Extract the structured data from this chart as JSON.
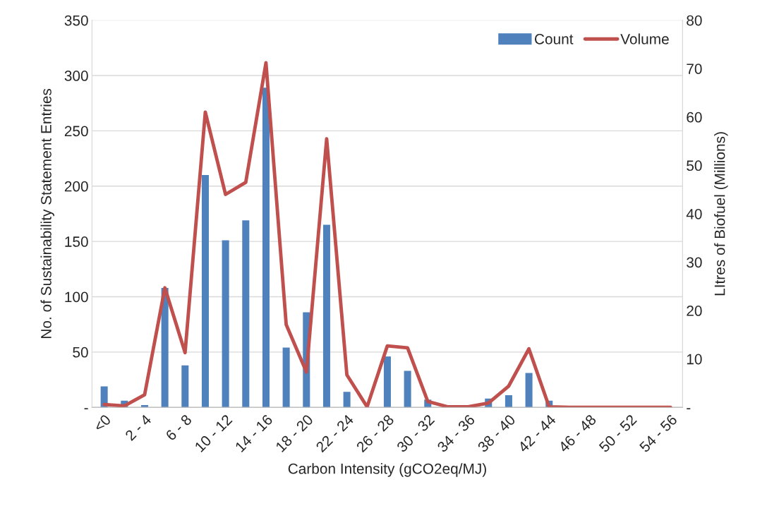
{
  "chart_data": {
    "type": "bar",
    "xlabel": "Carbon Intensity (gCO2eq/MJ)",
    "ylabel": "No. of Sustainability Statement Entries",
    "y2label": "LItres of Biofuel (Millions)",
    "categories": [
      "<0",
      null,
      "2 - 4",
      null,
      "6 - 8",
      null,
      "10 - 12",
      null,
      "14 - 16",
      null,
      "18 - 20",
      null,
      "22 - 24",
      null,
      "26 - 28",
      null,
      "30 - 32",
      null,
      "34 - 36",
      null,
      "38 - 40",
      null,
      "42 - 44",
      null,
      "46 - 48",
      null,
      "50 - 52",
      null,
      "54 - 56"
    ],
    "series": [
      {
        "name": "Count",
        "color": "#4f81bd",
        "values": [
          19,
          6,
          2,
          108,
          38,
          210,
          151,
          169,
          289,
          54,
          86,
          165,
          14,
          0,
          46,
          33,
          7,
          0,
          0,
          8,
          11,
          31,
          6,
          0,
          0,
          0,
          0,
          0,
          0
        ]
      },
      {
        "name": "Volume",
        "type": "line",
        "axis": "y2",
        "color": "#c0504d",
        "values": [
          0.6,
          0.3,
          2.6,
          24.7,
          11.3,
          61,
          44,
          46.5,
          71.2,
          17.1,
          7.3,
          55.5,
          6.7,
          0.1,
          12.7,
          12.3,
          1.2,
          0.1,
          0.1,
          0.9,
          4.4,
          12.1,
          0.1,
          0,
          0,
          0,
          0,
          0,
          0
        ]
      }
    ],
    "ylim": [
      0,
      350
    ],
    "yticks": [
      {
        "value": 0,
        "label": "-"
      },
      50,
      100,
      150,
      200,
      250,
      300,
      350
    ],
    "y2lim": [
      0,
      80
    ],
    "y2ticks": [
      {
        "value": 0,
        "label": "-"
      },
      10,
      20,
      30,
      40,
      50,
      60,
      70,
      80
    ],
    "grid": "y",
    "legend": "top right",
    "marker": "none",
    "line_style": "solid"
  }
}
